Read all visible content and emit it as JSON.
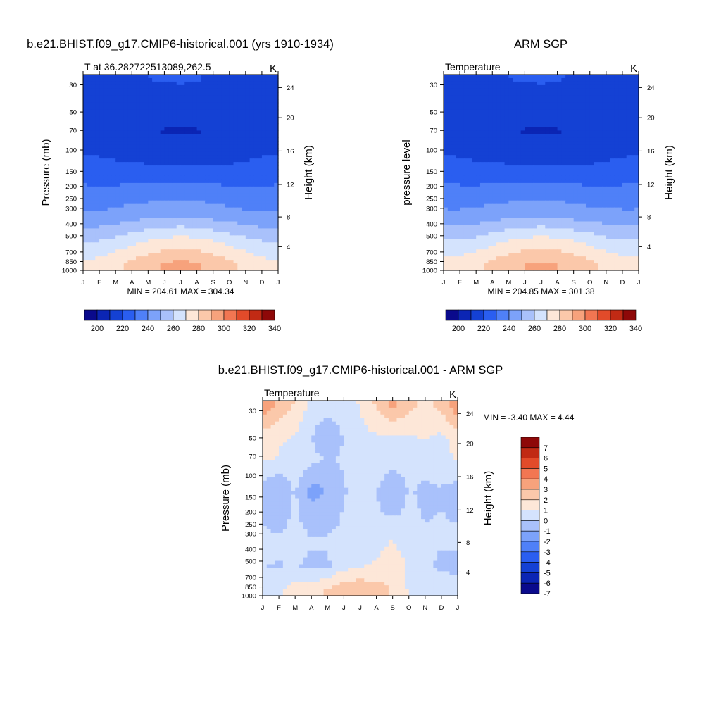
{
  "chart_data": [
    {
      "type": "heatmap",
      "title": "b.e21.BHIST.f09_g17.CMIP6-historical.001 (yrs 1910-1934)",
      "subtitle_left": "T at 36.282722513089,262.5",
      "subtitle_right": "K",
      "xlabel": "",
      "ylabel": "Pressure (mb)",
      "ylabel_right": "Height (km)",
      "x_ticks": [
        "J",
        "F",
        "M",
        "A",
        "M",
        "J",
        "J",
        "A",
        "S",
        "O",
        "N",
        "D",
        "J"
      ],
      "y_ticks": [
        "30",
        "50",
        "70",
        "100",
        "150",
        "200",
        "250",
        "300",
        "400",
        "500",
        "700",
        "850",
        "1000"
      ],
      "y_ticks_right": [
        "24",
        "20",
        "16",
        "12",
        "8",
        "4"
      ],
      "stats": "MIN = 204.61 MAX = 304.34",
      "colorbar": {
        "orientation": "horizontal",
        "labels": [
          "200",
          "220",
          "240",
          "260",
          "280",
          "300",
          "320",
          "340"
        ],
        "colors": [
          "#0a0a8c",
          "#0b25b4",
          "#1441d4",
          "#2a5ef0",
          "#4f80f8",
          "#7ca2fa",
          "#a9c1fb",
          "#d4e3fd",
          "#fde7d8",
          "#fbc8aa",
          "#f7a27c",
          "#f27652",
          "#e24b2a",
          "#c12a14",
          "#8e0808"
        ]
      },
      "ylim": [
        1000,
        30
      ],
      "color_range": [
        190,
        350
      ],
      "sample_values": [
        [
          215,
          216,
          217,
          219,
          222,
          223,
          224,
          223,
          220,
          218,
          216,
          215,
          215
        ],
        [
          214,
          215,
          215,
          216,
          214,
          212,
          212,
          212,
          213,
          214,
          214,
          214,
          214
        ],
        [
          217,
          216,
          215,
          214,
          212,
          211,
          211,
          211,
          212,
          213,
          214,
          216,
          217
        ],
        [
          225,
          224,
          223,
          223,
          222,
          222,
          222,
          222,
          222,
          222,
          223,
          224,
          225
        ],
        [
          245,
          245,
          247,
          249,
          251,
          252,
          253,
          252,
          250,
          248,
          246,
          245,
          245
        ],
        [
          264,
          265,
          268,
          272,
          276,
          279,
          280,
          279,
          276,
          272,
          268,
          265,
          264
        ],
        [
          278,
          280,
          284,
          289,
          294,
          298,
          300,
          298,
          294,
          289,
          284,
          280,
          278
        ]
      ]
    },
    {
      "type": "heatmap",
      "title": "ARM SGP",
      "subtitle_left": "Temperature",
      "subtitle_right": "K",
      "xlabel": "",
      "ylabel": "pressure level",
      "ylabel_right": "Height (km)",
      "x_ticks": [
        "J",
        "F",
        "M",
        "A",
        "M",
        "J",
        "J",
        "A",
        "S",
        "O",
        "N",
        "D",
        "J"
      ],
      "y_ticks": [
        "30",
        "50",
        "70",
        "100",
        "150",
        "200",
        "250",
        "300",
        "400",
        "500",
        "700",
        "850",
        "1000"
      ],
      "y_ticks_right": [
        "24",
        "20",
        "16",
        "12",
        "8",
        "4"
      ],
      "stats": "MIN = 204.85 MAX = 301.38",
      "colorbar": {
        "orientation": "horizontal",
        "labels": [
          "200",
          "220",
          "240",
          "260",
          "280",
          "300",
          "320",
          "340"
        ],
        "colors": [
          "#0a0a8c",
          "#0b25b4",
          "#1441d4",
          "#2a5ef0",
          "#4f80f8",
          "#7ca2fa",
          "#a9c1fb",
          "#d4e3fd",
          "#fde7d8",
          "#fbc8aa",
          "#f7a27c",
          "#f27652",
          "#e24b2a",
          "#c12a14",
          "#8e0808"
        ]
      },
      "ylim": [
        1000,
        30
      ],
      "color_range": [
        190,
        350
      ],
      "sample_values": [
        [
          216,
          217,
          218,
          220,
          222,
          223,
          224,
          223,
          221,
          219,
          217,
          216,
          216
        ],
        [
          213,
          214,
          215,
          216,
          214,
          212,
          212,
          212,
          213,
          214,
          214,
          213,
          213
        ],
        [
          216,
          215,
          214,
          213,
          212,
          211,
          211,
          211,
          212,
          213,
          214,
          215,
          216
        ],
        [
          225,
          224,
          223,
          223,
          222,
          222,
          222,
          222,
          222,
          222,
          223,
          224,
          225
        ],
        [
          246,
          246,
          247,
          249,
          251,
          252,
          253,
          252,
          250,
          248,
          247,
          246,
          246
        ],
        [
          265,
          266,
          268,
          272,
          276,
          279,
          280,
          279,
          276,
          272,
          268,
          266,
          265
        ],
        [
          279,
          281,
          284,
          289,
          294,
          297,
          299,
          297,
          294,
          289,
          284,
          281,
          279
        ]
      ]
    },
    {
      "type": "heatmap",
      "title": "b.e21.BHIST.f09_g17.CMIP6-historical.001 - ARM SGP",
      "subtitle_left": "Temperature",
      "subtitle_right": "K",
      "xlabel": "",
      "ylabel": "Pressure (mb)",
      "ylabel_right": "Height (km)",
      "x_ticks": [
        "J",
        "F",
        "M",
        "A",
        "M",
        "J",
        "J",
        "A",
        "S",
        "O",
        "N",
        "D",
        "J"
      ],
      "y_ticks": [
        "30",
        "50",
        "70",
        "100",
        "150",
        "200",
        "250",
        "300",
        "400",
        "500",
        "700",
        "850",
        "1000"
      ],
      "y_ticks_right": [
        "24",
        "20",
        "16",
        "12",
        "8",
        "4"
      ],
      "stats": "MIN =  -3.40 MAX =   4.44",
      "colorbar": {
        "orientation": "vertical",
        "labels": [
          "7",
          "6",
          "5",
          "4",
          "3",
          "2",
          "1",
          "0",
          "-1",
          "-2",
          "-3",
          "-4",
          "-5",
          "-6",
          "-7"
        ],
        "colors": [
          "#8e0808",
          "#c12a14",
          "#e24b2a",
          "#f27652",
          "#f7a27c",
          "#fbc8aa",
          "#fde7d8",
          "#d4e3fd",
          "#a9c1fb",
          "#7ca2fa",
          "#4f80f8",
          "#2a5ef0",
          "#1441d4",
          "#0b25b4",
          "#0a0a8c"
        ]
      },
      "ylim": [
        1000,
        30
      ],
      "color_range": [
        -8,
        8
      ],
      "sample_values": [
        [
          3.5,
          2.5,
          1.5,
          0.2,
          0.0,
          0.2,
          0.6,
          1.8,
          3.0,
          2.0,
          1.2,
          2.0,
          3.5
        ],
        [
          1.0,
          0.6,
          0.5,
          -0.5,
          -1.5,
          -0.5,
          0.2,
          0.4,
          0.3,
          0.4,
          0.6,
          0.3,
          1.0
        ],
        [
          0.6,
          0.5,
          0.2,
          -0.2,
          -0.6,
          -0.4,
          0.2,
          0.5,
          0.2,
          0.1,
          0.0,
          0.1,
          0.6
        ],
        [
          -1.0,
          -1.6,
          -0.4,
          -2.0,
          -1.5,
          -0.6,
          -0.3,
          -0.5,
          -1.8,
          -0.4,
          -0.8,
          -0.6,
          -1.0
        ],
        [
          -0.3,
          -0.4,
          -0.2,
          -0.4,
          -0.4,
          -0.3,
          -0.2,
          -0.1,
          0.6,
          -0.2,
          -0.4,
          -0.4,
          -0.3
        ],
        [
          -0.5,
          -0.6,
          -0.4,
          -0.8,
          -0.7,
          0.2,
          0.4,
          0.8,
          1.5,
          0.3,
          -0.2,
          -0.8,
          -1.0
        ],
        [
          -0.6,
          0.4,
          1.0,
          1.2,
          1.8,
          2.5,
          2.5,
          2.0,
          1.5,
          0.4,
          0.2,
          0.4,
          0.4
        ]
      ]
    }
  ]
}
